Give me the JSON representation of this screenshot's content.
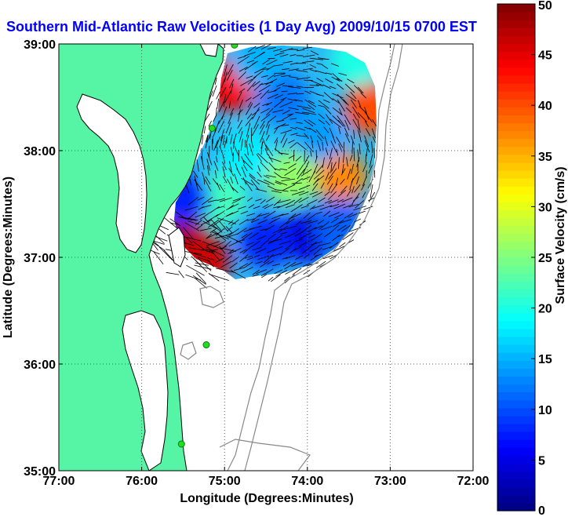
{
  "chart_data": {
    "type": "heatmap",
    "title": "Southern Mid-Atlantic Raw Velocities (1 Day Avg) 2009/10/15 0700 EST",
    "xlabel": "Longitude (Degrees:Minutes)",
    "ylabel": "Latitude (Degrees:Minutes)",
    "xlim": [
      -77,
      -72
    ],
    "ylim": [
      35,
      39
    ],
    "x_ticks": [
      {
        "value": -77,
        "label": "77:00"
      },
      {
        "value": -76,
        "label": "76:00"
      },
      {
        "value": -75,
        "label": "75:00"
      },
      {
        "value": -74,
        "label": "74:00"
      },
      {
        "value": -73,
        "label": "73:00"
      },
      {
        "value": -72,
        "label": "72:00"
      }
    ],
    "y_ticks": [
      {
        "value": 35,
        "label": "35:00"
      },
      {
        "value": 36,
        "label": "36:00"
      },
      {
        "value": 37,
        "label": "37:00"
      },
      {
        "value": 38,
        "label": "38:00"
      },
      {
        "value": 39,
        "label": "39:00"
      }
    ],
    "grid": true,
    "colorbar": {
      "label": "Surface Velocity (cm/s)",
      "range": [
        0,
        50
      ],
      "ticks": [
        {
          "value": 0,
          "label": "0"
        },
        {
          "value": 5,
          "label": "5"
        },
        {
          "value": 10,
          "label": "10"
        },
        {
          "value": 15,
          "label": "15"
        },
        {
          "value": 20,
          "label": "20"
        },
        {
          "value": 25,
          "label": "25"
        },
        {
          "value": 30,
          "label": "30"
        },
        {
          "value": 35,
          "label": "35"
        },
        {
          "value": 40,
          "label": "40"
        },
        {
          "value": 45,
          "label": "45"
        },
        {
          "value": 50,
          "label": "50"
        }
      ],
      "colormap": "jet"
    },
    "land_color": "#55f5a5",
    "site_color": "#22dd22",
    "radar_sites": [
      {
        "lon": -74.88,
        "lat": 38.99
      },
      {
        "lon": -75.15,
        "lat": 38.21
      },
      {
        "lon": -75.22,
        "lat": 36.18
      },
      {
        "lon": -75.52,
        "lat": 35.25
      }
    ],
    "velocity_field": {
      "units": "cm/s",
      "centroids": [
        {
          "lon": -75.5,
          "lat": 37.15,
          "speed": 48
        },
        {
          "lon": -75.25,
          "lat": 36.96,
          "speed": 46
        },
        {
          "lon": -74.92,
          "lat": 38.62,
          "speed": 44
        },
        {
          "lon": -73.25,
          "lat": 38.4,
          "speed": 40
        },
        {
          "lon": -73.6,
          "lat": 37.75,
          "speed": 37
        },
        {
          "lon": -74.2,
          "lat": 37.75,
          "speed": 26
        },
        {
          "lon": -75.05,
          "lat": 37.55,
          "speed": 22
        },
        {
          "lon": -74.0,
          "lat": 37.2,
          "speed": 5
        },
        {
          "lon": -74.5,
          "lat": 37.15,
          "speed": 8
        },
        {
          "lon": -73.6,
          "lat": 37.3,
          "speed": 11
        },
        {
          "lon": -74.3,
          "lat": 38.5,
          "speed": 12
        },
        {
          "lon": -73.85,
          "lat": 38.15,
          "speed": 14
        },
        {
          "lon": -75.5,
          "lat": 37.55,
          "speed": 8
        },
        {
          "lon": -74.75,
          "lat": 37.95,
          "speed": 18
        },
        {
          "lon": -73.4,
          "lat": 38.85,
          "speed": 20
        },
        {
          "lon": -74.6,
          "lat": 38.85,
          "speed": 15
        }
      ]
    }
  }
}
